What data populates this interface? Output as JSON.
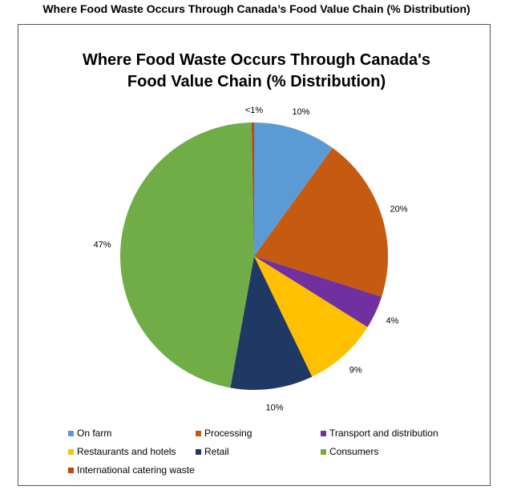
{
  "page_title": "Where Food Waste Occurs Through Canada’s Food Value Chain (% Distribution)",
  "chart_data": {
    "type": "pie",
    "title_lines": [
      "Where Food Waste Occurs Through Canada's",
      "Food Value Chain (% Distribution)"
    ],
    "start": "top, clockwise",
    "legend_position": "bottom",
    "slices": [
      {
        "name": "On farm",
        "value": 10,
        "label": "10%",
        "color": "#5b9bd5"
      },
      {
        "name": "Processing",
        "value": 20,
        "label": "20%",
        "color": "#c55a11"
      },
      {
        "name": "Transport and distribution",
        "value": 4,
        "label": "4%",
        "color": "#7030a0"
      },
      {
        "name": "Restaurants and hotels",
        "value": 9,
        "label": "9%",
        "color": "#ffc000"
      },
      {
        "name": "Retail",
        "value": 10,
        "label": "10%",
        "color": "#1f3864"
      },
      {
        "name": "Consumers",
        "value": 47,
        "label": "47%",
        "color": "#70ad47"
      },
      {
        "name": "International catering waste",
        "value": 0.3,
        "label": "<1%",
        "color": "#c9410b"
      }
    ]
  }
}
